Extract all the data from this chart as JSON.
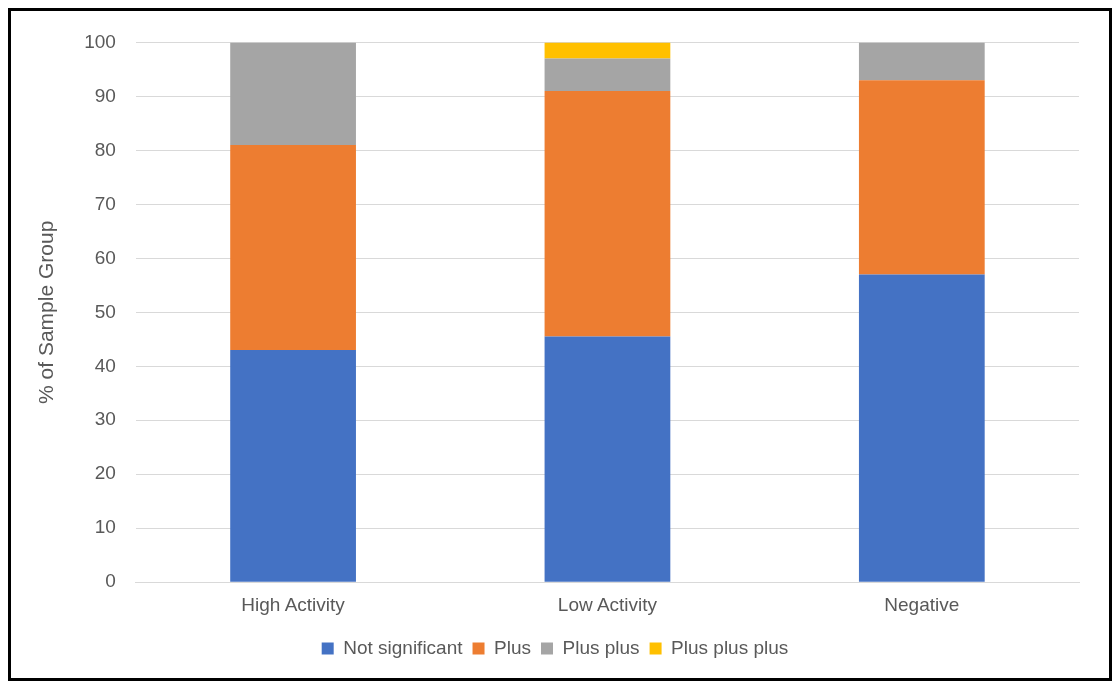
{
  "chart_data": {
    "type": "bar",
    "stacked": true,
    "ylabel": "% of Sample Group",
    "categories": [
      "High Activity",
      "Low Activity",
      "Negative"
    ],
    "series": [
      {
        "name": "Not significant",
        "color": "#4472c4",
        "values": [
          43,
          45.5,
          57
        ]
      },
      {
        "name": "Plus",
        "color": "#ed7d31",
        "values": [
          38,
          45.5,
          36
        ]
      },
      {
        "name": "Plus plus",
        "color": "#a5a5a5",
        "values": [
          19,
          6,
          7
        ]
      },
      {
        "name": "Plus plus plus",
        "color": "#ffc000",
        "values": [
          0,
          3,
          0
        ]
      }
    ],
    "ylim": [
      0,
      100
    ],
    "yticks": [
      0,
      10,
      20,
      30,
      40,
      50,
      60,
      70,
      80,
      90,
      100
    ],
    "grid": "y",
    "legend": "bottom"
  }
}
